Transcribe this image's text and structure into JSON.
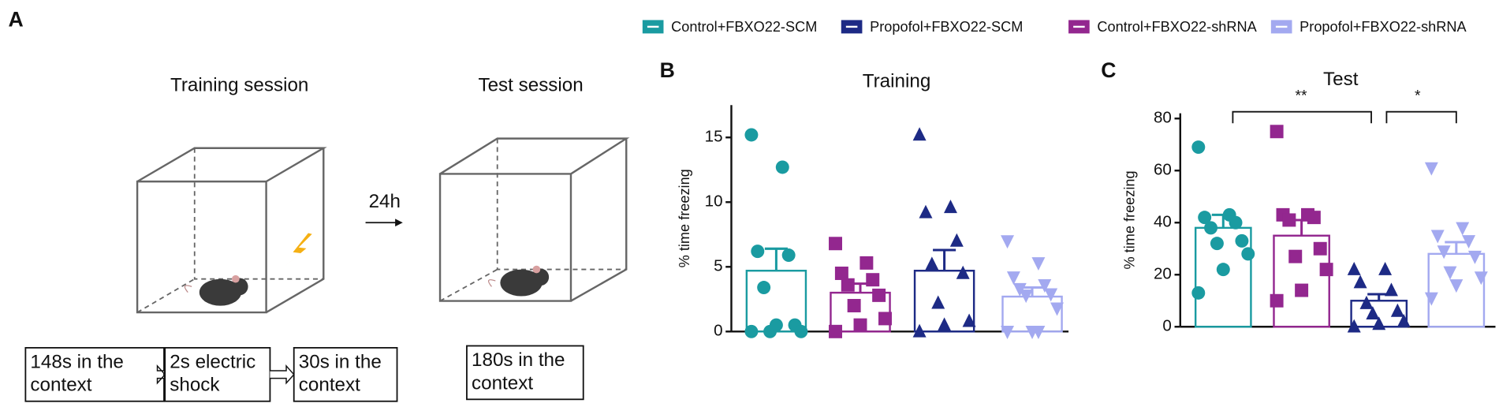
{
  "panel_a": {
    "letter": "A",
    "training_title": "Training session",
    "test_title": "Test session",
    "delay": "24h",
    "training_steps": [
      [
        "148s in the",
        "context"
      ],
      [
        "2s electric",
        "shock"
      ],
      [
        "30s in the",
        "context"
      ]
    ],
    "test_steps": [
      [
        "180s in the",
        "context"
      ]
    ]
  },
  "chart_data": [
    {
      "type": "bar",
      "letter": "B",
      "title": "Training",
      "y_label": "% time freezing",
      "ylim": [
        0,
        17.5
      ],
      "yticks": [
        0,
        5,
        10,
        15
      ],
      "series": [
        {
          "name": "Control+FBXO22-SCM",
          "color": "#1a9ba1",
          "marker": "circle",
          "values": [
            4.7
          ],
          "errors": [
            1.7
          ],
          "points": [
            15.2,
            12.7,
            6.2,
            5.9,
            3.4,
            0.5,
            0.0,
            0.0,
            0.5,
            0.0
          ]
        },
        {
          "name": "Propofol+FBXO22-SCM",
          "color": "#1d2a85",
          "marker": "triangle",
          "values": [
            4.7
          ],
          "errors": [
            1.6
          ],
          "points": [
            15.2,
            9.6,
            9.2,
            7.0,
            5.2,
            4.5,
            2.2,
            0.8,
            0.5,
            0.0
          ]
        },
        {
          "name": "Control+FBXO22-shRNA",
          "color": "#93278f",
          "marker": "square",
          "values": [
            3.0
          ],
          "errors": [
            0.7
          ],
          "points": [
            6.8,
            5.3,
            4.5,
            4.0,
            3.6,
            2.8,
            2.0,
            1.0,
            0.5,
            0.0
          ]
        },
        {
          "name": "Propofol+FBXO22-shRNA",
          "color": "#a3a9f0",
          "marker": "triangle-down",
          "values": [
            2.7
          ],
          "errors": [
            0.7
          ],
          "points": [
            7.0,
            5.3,
            4.2,
            3.6,
            3.3,
            2.9,
            2.8,
            1.8,
            0.0,
            0.0,
            0.0
          ]
        }
      ]
    },
    {
      "type": "bar",
      "letter": "C",
      "title": "Test",
      "y_label": "% time freezing",
      "ylim": [
        0,
        82
      ],
      "yticks": [
        0,
        20,
        40,
        60,
        80
      ],
      "annotations": [
        "**",
        "*"
      ],
      "series": [
        {
          "color": "#1a9ba1",
          "marker": "circle",
          "values": [
            38
          ],
          "errors": [
            5
          ],
          "points": [
            69,
            43,
            42,
            40,
            38,
            33,
            32,
            28,
            22,
            13
          ]
        },
        {
          "color": "#93278f",
          "marker": "square",
          "values": [
            35
          ],
          "errors": [
            6
          ],
          "points": [
            75,
            43,
            43,
            42,
            41,
            30,
            27,
            22,
            14,
            10
          ]
        },
        {
          "color": "#1d2a85",
          "marker": "triangle",
          "values": [
            10
          ],
          "errors": [
            2.5
          ],
          "points": [
            22,
            22,
            17,
            14,
            9,
            6,
            5,
            2,
            1,
            0
          ]
        },
        {
          "color": "#a3a9f0",
          "marker": "triangle-down",
          "values": [
            28
          ],
          "errors": [
            4.5
          ],
          "points": [
            61,
            38,
            35,
            33,
            29,
            27,
            21,
            19,
            16,
            11
          ]
        }
      ]
    }
  ]
}
